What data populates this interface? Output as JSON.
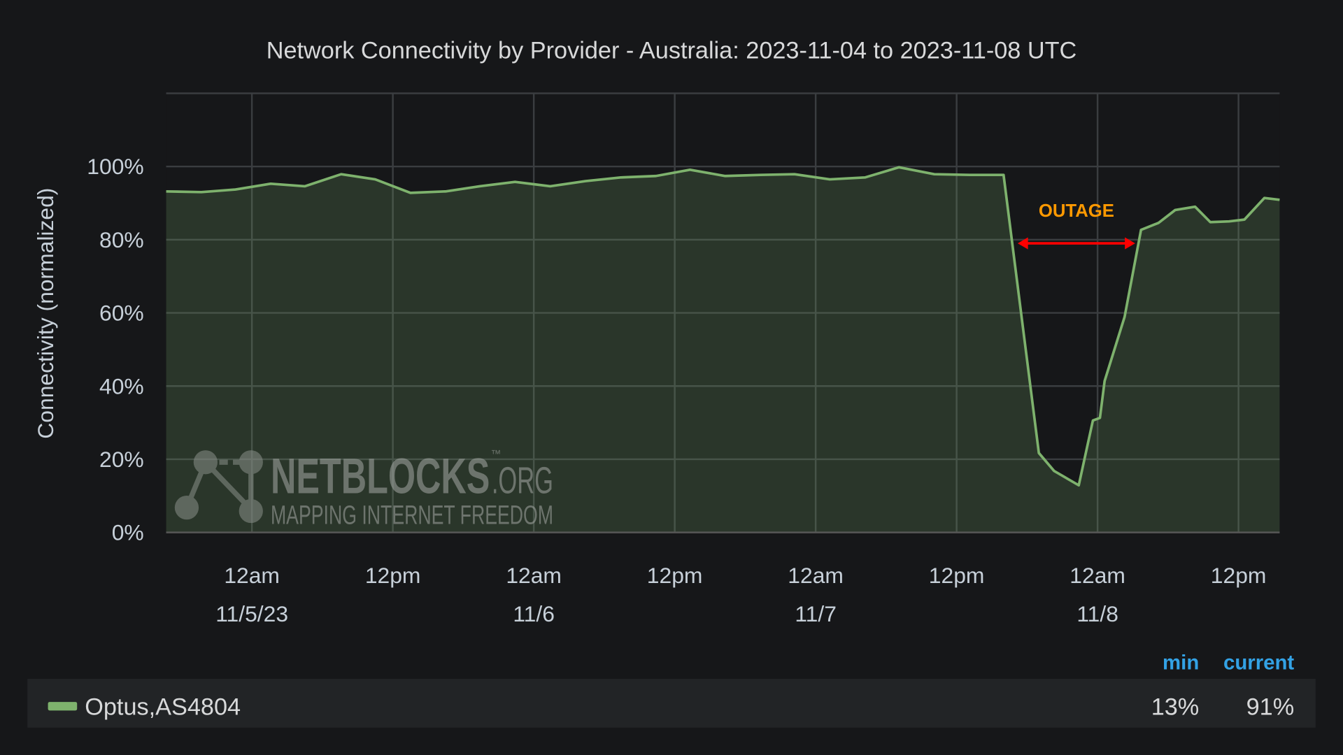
{
  "chart_data": {
    "type": "line",
    "title": "Network Connectivity by Provider - Australia: 2023-11-04 to 2023-11-08 UTC",
    "y_label": "Connectivity (normalized)",
    "xlim": [
      "2023-11-04 16:42",
      "2023-11-08 15:30"
    ],
    "xticks": [
      {
        "value": "2023-11-05 00:00",
        "label": [
          "12am",
          "11/5/23"
        ]
      },
      {
        "value": "2023-11-05 12:00",
        "label": [
          "12pm"
        ]
      },
      {
        "value": "2023-11-06 00:00",
        "label": [
          "12am",
          "11/6"
        ]
      },
      {
        "value": "2023-11-06 12:00",
        "label": [
          "12pm"
        ]
      },
      {
        "value": "2023-11-07 00:00",
        "label": [
          "12am",
          "11/7"
        ]
      },
      {
        "value": "2023-11-07 12:00",
        "label": [
          "12pm"
        ]
      },
      {
        "value": "2023-11-08 00:00",
        "label": [
          "12am",
          "11/8"
        ]
      },
      {
        "value": "2023-11-08 12:00",
        "label": [
          "12pm"
        ]
      }
    ],
    "ylim": [
      0,
      120
    ],
    "yticks": [
      {
        "value": 0,
        "label": "0%"
      },
      {
        "value": 20,
        "label": "20%"
      },
      {
        "value": 40,
        "label": "40%"
      },
      {
        "value": 60,
        "label": "60%"
      },
      {
        "value": 80,
        "label": "80%"
      },
      {
        "value": 100,
        "label": "100%"
      }
    ],
    "grid": true,
    "x": [
      "2023-11-04 16:42",
      "2023-11-04 19:42",
      "2023-11-04 22:36",
      "2023-11-05 01:36",
      "2023-11-05 04:30",
      "2023-11-05 07:36",
      "2023-11-05 10:30",
      "2023-11-05 13:30",
      "2023-11-05 16:30",
      "2023-11-05 19:24",
      "2023-11-05 22:24",
      "2023-11-06 01:24",
      "2023-11-06 04:24",
      "2023-11-06 07:24",
      "2023-11-06 10:24",
      "2023-11-06 13:18",
      "2023-11-06 16:18",
      "2023-11-06 19:18",
      "2023-11-06 22:12",
      "2023-11-07 01:12",
      "2023-11-07 04:12",
      "2023-11-07 07:06",
      "2023-11-07 10:06",
      "2023-11-07 13:06",
      "2023-11-07 16:00",
      "2023-11-07 19:00",
      "2023-11-07 20:18",
      "2023-11-07 22:24",
      "2023-11-07 23:36",
      "2023-11-08 00:12",
      "2023-11-08 00:36",
      "2023-11-08 02:18",
      "2023-11-08 03:42",
      "2023-11-08 05:12",
      "2023-11-08 06:36",
      "2023-11-08 08:18",
      "2023-11-08 09:36",
      "2023-11-08 11:12",
      "2023-11-08 12:30",
      "2023-11-08 14:12",
      "2023-11-08 15:30"
    ],
    "series": [
      {
        "name": "Optus,AS4804",
        "color": "#7eb26d",
        "values": [
          93.2,
          93,
          93.7,
          95.3,
          94.6,
          97.9,
          96.5,
          92.8,
          93.2,
          94.6,
          95.8,
          94.6,
          96,
          97,
          97.4,
          99.1,
          97.4,
          97.7,
          97.9,
          96.5,
          97,
          99.8,
          97.9,
          97.7,
          97.7,
          21.7,
          16.8,
          12.9,
          30.6,
          31.3,
          41.4,
          58.9,
          82.7,
          84.6,
          88.1,
          89,
          84.8,
          85,
          85.5,
          91.4,
          90.9
        ],
        "stat_values": [
          13,
          91
        ],
        "stat_labels": [
          "13%",
          "91%"
        ]
      }
    ],
    "legend_columns": [
      "min",
      "current"
    ],
    "annotation": {
      "text": "OUTAGE",
      "x_start": "2023-11-07 17:12",
      "x_end": "2023-11-08 03:12",
      "y": 79,
      "color": "#ff0000",
      "text_color": "#ff9900"
    },
    "watermark": {
      "name": "NETBLOCKS",
      "tm": "™",
      "suffix": ".ORG",
      "tagline": "MAPPING INTERNET FREEDOM"
    }
  }
}
